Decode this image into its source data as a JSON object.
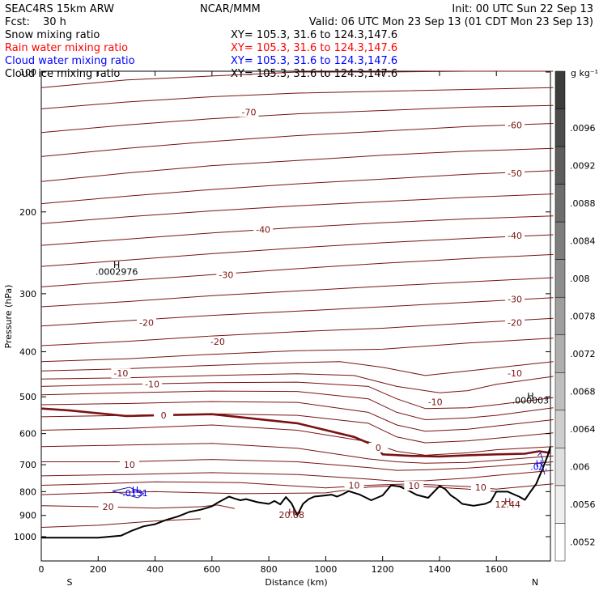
{
  "header": {
    "model": "SEAC4RS 15km ARW",
    "org": "NCAR/MMM",
    "init": "Init: 00 UTC Sun 22 Sep 13",
    "fcst_label": "Fcst:",
    "fcst_value": "30 h",
    "valid": "Valid: 06 UTC Mon 23 Sep 13 (01 CDT Mon 23 Sep 13)"
  },
  "fields": [
    {
      "name": "Snow mixing ratio",
      "xy": "XY= 105.3, 31.6 to 124.3,147.6",
      "color": "#000000"
    },
    {
      "name": "Rain water mixing ratio",
      "xy": "XY= 105.3, 31.6 to 124.3,147.6",
      "color": "#ff0000"
    },
    {
      "name": "Cloud water mixing ratio",
      "xy": "XY= 105.3, 31.6 to 124.3,147.6",
      "color": "#0000ff"
    },
    {
      "name": "Cloud ice mixing ratio",
      "xy": "XY= 105.3, 31.6 to 124.3,147.6",
      "color": "#000000"
    }
  ],
  "colors": {
    "isotherm": "#7a1212",
    "terrain": "#000000",
    "cloud_water": "#1a1aa0"
  },
  "chart_data": {
    "type": "cross-section",
    "xlabel": "Distance (km)",
    "ylabel": "Pressure (hPa)",
    "xlim": [
      0,
      1790
    ],
    "ylim": [
      1050,
      100
    ],
    "y_scale": "log-pressure",
    "x_ticks": [
      0,
      200,
      400,
      600,
      800,
      1000,
      1200,
      1400,
      1600
    ],
    "y_ticks": [
      100,
      200,
      300,
      400,
      500,
      600,
      700,
      800,
      900,
      1000
    ],
    "x_end_labels": {
      "left": "S",
      "right": "N"
    },
    "colorbar": {
      "units": "g kg⁻¹",
      "labels": [
        "",
        ".0096",
        ".0092",
        ".0088",
        ".0084",
        ".008",
        ".0078",
        ".0072",
        ".0068",
        ".0064",
        ".006",
        ".0056",
        ".0052"
      ]
    },
    "isotherms": [
      {
        "x": [
          0,
          300,
          600,
          900,
          1200,
          1500,
          1800
        ],
        "p": [
          108,
          104,
          102,
          100,
          100,
          99,
          98
        ]
      },
      {
        "x": [
          0,
          300,
          600,
          900,
          1200,
          1500,
          1800
        ],
        "p": [
          120,
          116,
          113,
          111,
          110,
          109,
          108
        ]
      },
      {
        "x": [
          0,
          300,
          600,
          900,
          1200,
          1500,
          1800
        ],
        "p": [
          135,
          130,
          126,
          123,
          121,
          119,
          118
        ],
        "label": "-70",
        "lx": 730,
        "lp": 122
      },
      {
        "x": [
          0,
          300,
          600,
          900,
          1200,
          1500,
          1800
        ],
        "p": [
          152,
          146,
          141,
          137,
          134,
          131,
          129
        ],
        "label": "-60",
        "lx": 1665,
        "lp": 130
      },
      {
        "x": [
          0,
          300,
          600,
          900,
          1200,
          1500,
          1800
        ],
        "p": [
          172,
          165,
          159,
          155,
          151,
          148,
          146
        ]
      },
      {
        "x": [
          0,
          300,
          600,
          900,
          1200,
          1500,
          1800
        ],
        "p": [
          192,
          185,
          179,
          174,
          170,
          166,
          163
        ],
        "label": "-50",
        "lx": 1665,
        "lp": 165
      },
      {
        "x": [
          0,
          300,
          600,
          900,
          1200,
          1500,
          1800
        ],
        "p": [
          212,
          205,
          199,
          194,
          190,
          186,
          183
        ]
      },
      {
        "x": [
          0,
          300,
          600,
          900,
          1200,
          1500,
          1800
        ],
        "p": [
          236,
          229,
          222,
          216,
          211,
          207,
          204
        ],
        "label": "-40",
        "lx": 780,
        "lp": 218
      },
      {
        "x": [
          0,
          300,
          600,
          900,
          1200,
          1500,
          1800
        ],
        "p": [
          262,
          254,
          246,
          239,
          233,
          228,
          224
        ],
        "label": "-40",
        "lx": 1665,
        "lp": 225
      },
      {
        "x": [
          0,
          300,
          600,
          900,
          1200,
          1500,
          1800
        ],
        "p": [
          290,
          281,
          273,
          265,
          258,
          252,
          247
        ],
        "label": "-30",
        "lx": 650,
        "lp": 273
      },
      {
        "x": [
          0,
          300,
          600,
          900,
          1200,
          1500,
          1800
        ],
        "p": [
          320,
          312,
          303,
          296,
          289,
          283,
          277
        ]
      },
      {
        "x": [
          0,
          300,
          600,
          900,
          1200,
          1500,
          1800
        ],
        "p": [
          352,
          343,
          334,
          327,
          320,
          313,
          306
        ],
        "label": "-30",
        "lx": 1665,
        "lp": 308
      },
      {
        "x": [
          0,
          300,
          600,
          900,
          1200,
          1500,
          1800
        ],
        "p": [
          388,
          380,
          370,
          362,
          356,
          347,
          339
        ],
        "label": "-20",
        "lx": 370,
        "lp": 346,
        "label2": "-20",
        "lx2": 1665,
        "lp2": 346
      },
      {
        "x": [
          0,
          300,
          600,
          900,
          1200,
          1500,
          1800
        ],
        "p": [
          420,
          414,
          405,
          398,
          395,
          383,
          374
        ],
        "label": "-20",
        "lx": 620,
        "lp": 380
      },
      {
        "x": [
          0,
          300,
          600,
          900,
          1050,
          1200,
          1350,
          1500,
          1800
        ],
        "p": [
          440,
          435,
          428,
          422,
          420,
          432,
          450,
          440,
          420
        ]
      },
      {
        "x": [
          0,
          300,
          600,
          900,
          1100,
          1250,
          1400,
          1500,
          1600,
          1800
        ],
        "p": [
          458,
          455,
          450,
          446,
          450,
          475,
          490,
          485,
          470,
          452
        ],
        "label": "-10",
        "lx": 280,
        "lp": 445,
        "label2": "-10",
        "lx2": 1665,
        "lp2": 445
      },
      {
        "x": [
          0,
          300,
          600,
          900,
          1150,
          1250,
          1350,
          1500,
          1600,
          1800
        ],
        "p": [
          475,
          470,
          466,
          465,
          475,
          505,
          530,
          528,
          520,
          502
        ],
        "label": "-10",
        "lx": 390,
        "lp": 469
      },
      {
        "x": [
          0,
          300,
          600,
          900,
          1150,
          1250,
          1350,
          1500,
          1600,
          1800
        ],
        "p": [
          495,
          490,
          486,
          487,
          505,
          540,
          560,
          555,
          548,
          528
        ],
        "label": "-10",
        "lx": 1385,
        "lp": 513
      },
      {
        "x": [
          0,
          300,
          600,
          900,
          1150,
          1250,
          1350,
          1500,
          1600,
          1800
        ],
        "p": [
          520,
          517,
          512,
          514,
          540,
          575,
          593,
          587,
          578,
          560
        ]
      },
      {
        "x": [
          0,
          300,
          600,
          900,
          1150,
          1250,
          1350,
          1500,
          1600,
          1800
        ],
        "p": [
          552,
          548,
          544,
          548,
          570,
          610,
          628,
          622,
          614,
          598
        ]
      },
      {
        "x": [
          0,
          100,
          300,
          400,
          600,
          900,
          1100,
          1180,
          1200,
          1300,
          1400,
          1500,
          1600,
          1700,
          1750,
          1790
        ],
        "p": [
          530,
          535,
          550,
          548,
          545,
          570,
          610,
          640,
          665,
          670,
          672,
          668,
          665,
          663,
          655,
          660
        ],
        "bold": true,
        "label": "0",
        "lx": 430,
        "lp": 548,
        "label2": "0",
        "lx2": 1185,
        "lp2": 643
      },
      {
        "x": [
          0,
          300,
          600,
          900,
          1150,
          1250,
          1350,
          1500,
          1600,
          1800
        ],
        "p": [
          590,
          585,
          575,
          590,
          625,
          655,
          668,
          660,
          650,
          640
        ]
      },
      {
        "x": [
          0,
          300,
          600,
          900,
          1150,
          1250,
          1350,
          1500,
          1600,
          1800
        ],
        "p": [
          640,
          635,
          630,
          645,
          680,
          690,
          695,
          692,
          685,
          670
        ]
      },
      {
        "x": [
          0,
          300,
          600,
          900,
          1150,
          1250,
          1350,
          1500,
          1600,
          1800
        ],
        "p": [
          690,
          690,
          682,
          690,
          710,
          720,
          718,
          712,
          705,
          690
        ],
        "label": "10",
        "lx": 310,
        "lp": 700
      },
      {
        "x": [
          0,
          300,
          600,
          900,
          1150,
          1250,
          1350,
          1500,
          1600,
          1800
        ],
        "p": [
          740,
          735,
          728,
          735,
          752,
          760,
          758,
          748,
          738,
          720
        ]
      },
      {
        "x": [
          0,
          200,
          400,
          700,
          1000,
          1150,
          1300,
          1500,
          1600,
          1800
        ],
        "p": [
          775,
          770,
          762,
          765,
          785,
          775,
          770,
          780,
          790,
          770
        ],
        "label": "10",
        "lx": 1100,
        "lp": 775,
        "label2": "10",
        "lx2": 1545,
        "lp2": 783
      },
      {
        "x": [
          0,
          200,
          400,
          700,
          1000,
          1150,
          1250,
          1350,
          1500,
          1600
        ],
        "p": [
          812,
          805,
          800,
          808,
          805,
          782,
          777,
          780,
          790,
          800
        ],
        "label": "10",
        "lx": 1310,
        "lp": 777
      },
      {
        "x": [
          0,
          200,
          400,
          560,
          620,
          680
        ],
        "p": [
          858,
          862,
          868,
          862,
          855,
          870
        ],
        "label": "20",
        "lx": 235,
        "lp": 862
      },
      {
        "x": [
          0,
          200,
          400,
          560
        ],
        "p": [
          955,
          945,
          925,
          915
        ]
      }
    ],
    "terrain": {
      "x": [
        0,
        100,
        200,
        280,
        320,
        360,
        400,
        440,
        480,
        520,
        560,
        580,
        600,
        620,
        660,
        680,
        700,
        720,
        760,
        800,
        820,
        840,
        860,
        880,
        900,
        920,
        940,
        960,
        1000,
        1020,
        1040,
        1060,
        1080,
        1120,
        1160,
        1200,
        1230,
        1260,
        1290,
        1320,
        1360,
        1400,
        1420,
        1440,
        1460,
        1480,
        1520,
        1560,
        1580,
        1600,
        1640,
        1660,
        1680,
        1700,
        1720,
        1740,
        1760,
        1780,
        1790
      ],
      "p": [
        1005,
        1005,
        1005,
        995,
        970,
        950,
        940,
        920,
        905,
        885,
        875,
        868,
        860,
        845,
        820,
        828,
        835,
        830,
        843,
        850,
        838,
        852,
        822,
        848,
        900,
        850,
        830,
        820,
        815,
        812,
        820,
        810,
        798,
        812,
        835,
        815,
        775,
        780,
        795,
        813,
        825,
        778,
        790,
        815,
        830,
        850,
        858,
        850,
        840,
        800,
        800,
        810,
        820,
        833,
        800,
        770,
        720,
        670,
        640
      ]
    },
    "cloud_water_contours": [
      {
        "x": [
          250,
          310,
          360,
          340
        ],
        "p": [
          798,
          783,
          808,
          825
        ],
        "closed": true
      },
      {
        "x": [
          1745,
          1755,
          1765,
          1750,
          1760,
          1770
        ],
        "p": [
          670,
          660,
          690,
          720,
          700,
          735
        ]
      }
    ],
    "annotations": [
      {
        "text": "H",
        "x": 265,
        "p": 260,
        "color": "#000000"
      },
      {
        "text": ".0002976",
        "x": 265,
        "p": 269,
        "color": "#000000"
      },
      {
        "text": "H",
        "x": 1720,
        "p": 498,
        "color": "#000000"
      },
      {
        "text": ".000003",
        "x": 1720,
        "p": 509,
        "color": "#000000"
      },
      {
        "text": "H",
        "x": 880,
        "p": 885,
        "color": "#7a1212"
      },
      {
        "text": "20.88",
        "x": 880,
        "p": 897,
        "color": "#7a1212"
      },
      {
        "text": "H",
        "x": 1640,
        "p": 840,
        "color": "#7a1212"
      },
      {
        "text": "12.44",
        "x": 1640,
        "p": 852,
        "color": "#7a1212"
      },
      {
        "text": "H",
        "x": 330,
        "p": 792,
        "color": "#0000ff"
      },
      {
        "text": ".0131",
        "x": 330,
        "p": 805,
        "color": "#0000ff"
      },
      {
        "text": "H",
        "x": 1750,
        "p": 695,
        "color": "#0000ff"
      },
      {
        "text": ".0…",
        "x": 1750,
        "p": 707,
        "color": "#0000ff"
      }
    ]
  }
}
